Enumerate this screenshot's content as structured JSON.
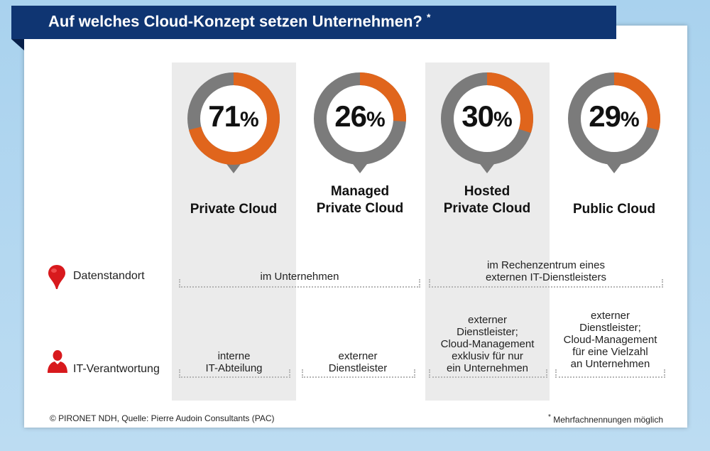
{
  "title": "Auf welches Cloud-Konzept setzen Unternehmen?",
  "title_mark": "*",
  "chart_data": {
    "type": "pie",
    "style": "donut-per-category",
    "categories": [
      "Private Cloud",
      "Managed Private Cloud",
      "Hosted Private Cloud",
      "Public Cloud"
    ],
    "category_lines": [
      [
        "Private Cloud"
      ],
      [
        "Managed",
        "Private Cloud"
      ],
      [
        "Hosted",
        "Private Cloud"
      ],
      [
        "Public Cloud"
      ]
    ],
    "values": [
      71,
      26,
      30,
      29
    ],
    "unit": "%",
    "colors": {
      "highlight": "#e0651c",
      "remainder": "#7b7b7b"
    }
  },
  "rows": {
    "location": {
      "label": "Datenstandort",
      "icon": "map-pin-icon",
      "groups": [
        {
          "span": "Private Cloud – Managed Private Cloud",
          "text": [
            "im Unternehmen"
          ]
        },
        {
          "span": "Hosted Private Cloud – Public Cloud",
          "text": [
            "im Rechenzentrum eines",
            "externen IT-Dienstleisters"
          ]
        }
      ]
    },
    "responsibility": {
      "label": "IT-Verantwortung",
      "icon": "person-icon",
      "cells": [
        [
          "interne",
          "IT-Abteilung"
        ],
        [
          "externer",
          "Dienstleister"
        ],
        [
          "externer",
          "Dienstleister;",
          "Cloud-Management",
          "exklusiv für nur",
          "ein Unternehmen"
        ],
        [
          "externer",
          "Dienstleister;",
          "Cloud-Management",
          "für eine Vielzahl",
          "an Unternehmen"
        ]
      ]
    }
  },
  "footer": {
    "source": "© PIRONET NDH, Quelle: Pierre Audoin Consultants (PAC)",
    "note_mark": "*",
    "note": "Mehrfachnennungen möglich"
  },
  "colors": {
    "title_bg": "#0f3572",
    "icon_red": "#d8191d",
    "column_shade": "#ebebeb"
  }
}
